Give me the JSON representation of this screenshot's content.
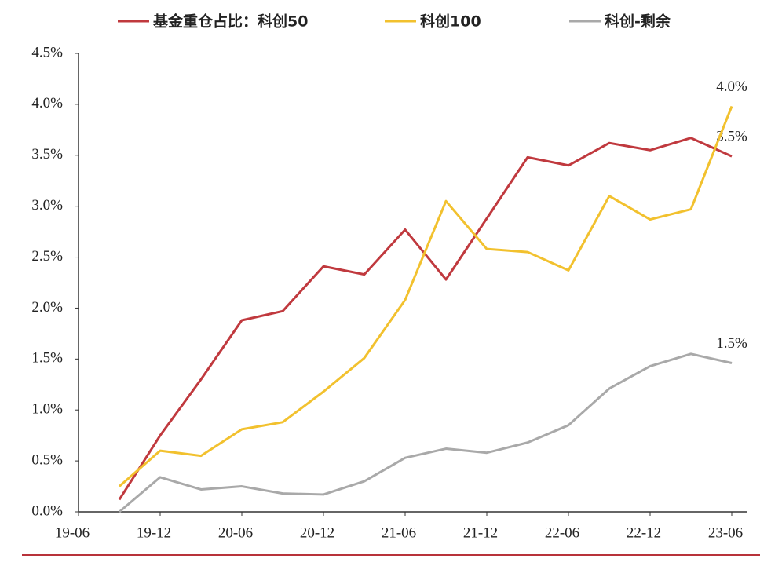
{
  "chart_data": {
    "type": "line",
    "categories": [
      "19-06",
      null,
      "19-12",
      null,
      "20-06",
      null,
      "20-12",
      null,
      "21-06",
      null,
      "21-12",
      null,
      "22-06",
      null,
      "22-12",
      null,
      "23-06"
    ],
    "series": [
      {
        "name": "基金重仓占比：科创50",
        "color": "#c0393e",
        "values": [
          null,
          0.12,
          0.75,
          1.3,
          1.88,
          1.97,
          2.41,
          2.33,
          2.77,
          2.28,
          2.88,
          3.48,
          3.4,
          3.62,
          3.55,
          3.67,
          3.49
        ],
        "value_labels": [
          null,
          null,
          null,
          null,
          null,
          null,
          null,
          null,
          null,
          null,
          null,
          null,
          null,
          null,
          null,
          null,
          "3.5%"
        ]
      },
      {
        "name": "科创100",
        "color": "#f2c12e",
        "values": [
          null,
          0.25,
          0.6,
          0.55,
          0.81,
          0.88,
          1.18,
          1.51,
          2.08,
          3.05,
          2.58,
          2.55,
          2.37,
          3.1,
          2.87,
          2.97,
          3.98
        ],
        "value_labels": [
          null,
          null,
          null,
          null,
          null,
          null,
          null,
          null,
          null,
          null,
          null,
          null,
          null,
          null,
          null,
          null,
          "4.0%"
        ]
      },
      {
        "name": "科创-剩余",
        "color": "#a9a9a9",
        "values": [
          null,
          0.0,
          0.34,
          0.22,
          0.25,
          0.18,
          0.17,
          0.3,
          0.53,
          0.62,
          0.58,
          0.68,
          0.85,
          1.21,
          1.43,
          1.55,
          1.46
        ],
        "value_labels": [
          null,
          null,
          null,
          null,
          null,
          null,
          null,
          null,
          null,
          null,
          null,
          null,
          null,
          null,
          null,
          null,
          "1.5%"
        ]
      }
    ],
    "ylim": [
      0,
      4.5
    ],
    "yticks": [
      {
        "value": 0,
        "label": "0.0%"
      },
      {
        "value": 0.5,
        "label": "0.5%"
      },
      {
        "value": 1,
        "label": "1.0%"
      },
      {
        "value": 1.5,
        "label": "1.5%"
      },
      {
        "value": 2,
        "label": "2.0%"
      },
      {
        "value": 2.5,
        "label": "2.5%"
      },
      {
        "value": 3,
        "label": "3.0%"
      },
      {
        "value": 3.5,
        "label": "3.5%"
      },
      {
        "value": 4,
        "label": "4.0%"
      },
      {
        "value": 4.5,
        "label": "4.5%"
      }
    ],
    "grid": false
  }
}
